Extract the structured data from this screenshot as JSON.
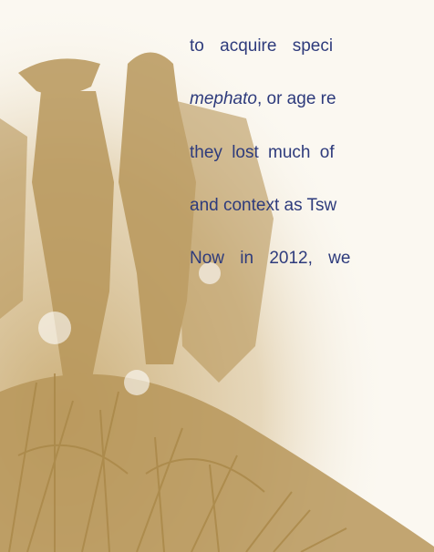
{
  "text": {
    "lines": [
      {
        "parts": [
          "to acquire speci"
        ]
      },
      {
        "parts": [
          "mephato",
          ", or age re"
        ]
      },
      {
        "parts": [
          "they lost much of"
        ]
      },
      {
        "parts": [
          "and context as Tsw"
        ]
      },
      {
        "parts": [
          "Now in 2012, we"
        ]
      }
    ]
  }
}
